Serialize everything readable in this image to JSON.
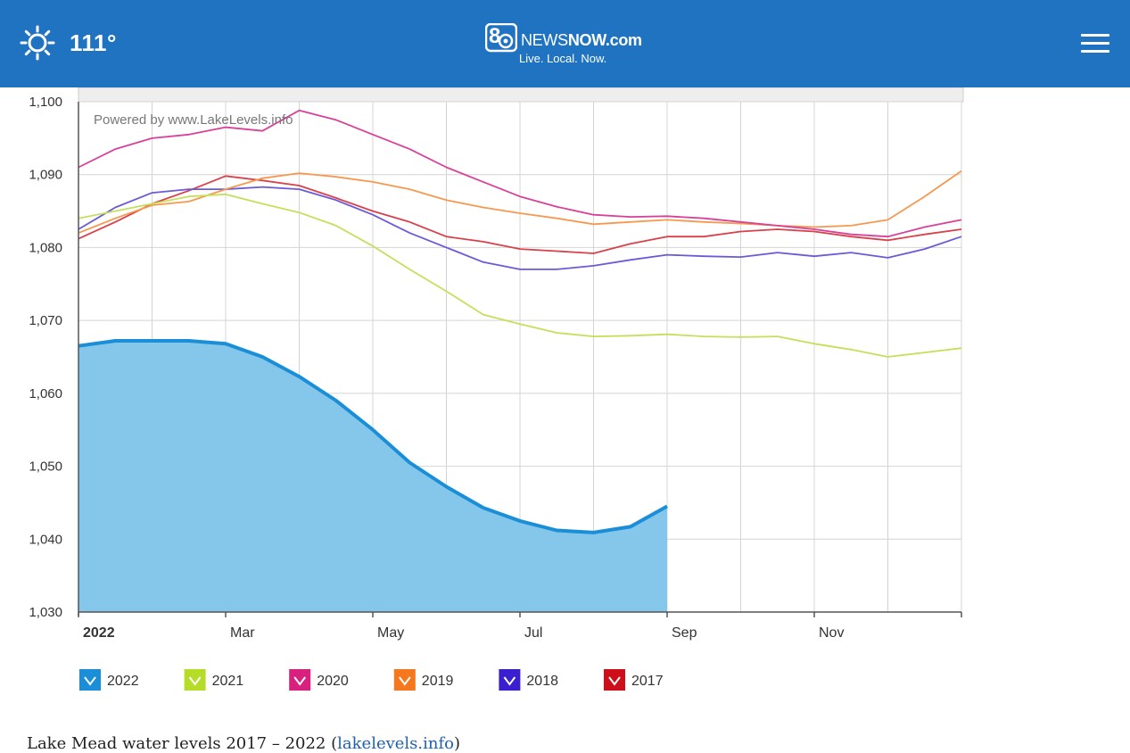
{
  "header": {
    "temperature": "111°",
    "weather_icon": "sun-icon",
    "logo_number": "8",
    "logo_news": "NEWS",
    "logo_now": "NOW",
    "logo_domain": ".com",
    "logo_tagline": "Live. Local. Now.",
    "menu_icon": "hamburger-menu-icon",
    "background_color": "#1f73c1"
  },
  "chart_data": {
    "type": "area",
    "attribution": "Powered by www.LakeLevels.info",
    "x_tick_labels": [
      "2022",
      "Mar",
      "May",
      "Jul",
      "Sep",
      "Nov"
    ],
    "ylim": [
      1030,
      1100
    ],
    "y_ticks": [
      1030,
      1040,
      1050,
      1060,
      1070,
      1080,
      1090,
      1100
    ],
    "y_tick_labels": [
      "1,030",
      "1,040",
      "1,050",
      "1,060",
      "1,070",
      "1,080",
      "1,090",
      "1,100"
    ],
    "grid": true,
    "legend_position": "bottom",
    "x_unit": "month of year",
    "series": [
      {
        "name": "2022",
        "color": "#1a8fd8",
        "fill": "#85c7ea",
        "x": [
          0,
          0.5,
          1,
          1.5,
          2,
          2.5,
          3,
          3.5,
          4,
          4.5,
          5,
          5.5,
          6,
          6.5,
          7,
          7.5,
          8
        ],
        "values": [
          1066.5,
          1067.2,
          1067.2,
          1067.2,
          1066.8,
          1065.0,
          1062.3,
          1059.0,
          1055.0,
          1050.5,
          1047.2,
          1044.3,
          1042.5,
          1041.2,
          1040.9,
          1041.7,
          1044.5
        ]
      },
      {
        "name": "2021",
        "color": "#c4e05a",
        "x": [
          0,
          0.5,
          1,
          1.5,
          2,
          2.5,
          3,
          3.5,
          4,
          4.5,
          5,
          5.5,
          6,
          6.5,
          7,
          7.5,
          8,
          8.5,
          9,
          9.5,
          10,
          10.5,
          11,
          11.5,
          12
        ],
        "values": [
          1084.0,
          1085.0,
          1086.0,
          1087.0,
          1087.3,
          1086.0,
          1084.8,
          1083.0,
          1080.2,
          1077.0,
          1074.0,
          1070.8,
          1069.5,
          1068.3,
          1067.8,
          1067.9,
          1068.1,
          1067.8,
          1067.7,
          1067.8,
          1066.8,
          1066.0,
          1065.0,
          1065.6,
          1066.2
        ]
      },
      {
        "name": "2020",
        "color": "#d8419a",
        "x": [
          0,
          0.5,
          1,
          1.5,
          2,
          2.5,
          3,
          3.5,
          4,
          4.5,
          5,
          5.5,
          6,
          6.5,
          7,
          7.5,
          8,
          8.5,
          9,
          9.5,
          10,
          10.5,
          11,
          11.5,
          12
        ],
        "values": [
          1091.0,
          1093.5,
          1095.0,
          1095.5,
          1096.5,
          1096.0,
          1098.8,
          1097.5,
          1095.5,
          1093.5,
          1091.0,
          1089.0,
          1087.0,
          1085.6,
          1084.5,
          1084.2,
          1084.3,
          1084.0,
          1083.5,
          1083.0,
          1082.5,
          1081.8,
          1081.5,
          1082.8,
          1083.8
        ]
      },
      {
        "name": "2019",
        "color": "#f6994f",
        "x": [
          0,
          0.5,
          1,
          1.5,
          2,
          2.5,
          3,
          3.5,
          4,
          4.5,
          5,
          5.5,
          6,
          6.5,
          7,
          7.5,
          8,
          8.5,
          9,
          9.5,
          10,
          10.5,
          11,
          11.5,
          12
        ],
        "values": [
          1082.0,
          1084.0,
          1085.8,
          1086.3,
          1088.0,
          1089.5,
          1090.2,
          1089.7,
          1089.0,
          1088.0,
          1086.5,
          1085.5,
          1084.7,
          1084.0,
          1083.2,
          1083.5,
          1083.8,
          1083.5,
          1083.3,
          1083.0,
          1082.8,
          1083.0,
          1083.8,
          1087.0,
          1090.5
        ]
      },
      {
        "name": "2018",
        "color": "#6b5ad8",
        "x": [
          0,
          0.5,
          1,
          1.5,
          2,
          2.5,
          3,
          3.5,
          4,
          4.5,
          5,
          5.5,
          6,
          6.5,
          7,
          7.5,
          8,
          8.5,
          9,
          9.5,
          10,
          10.5,
          11,
          11.5,
          12
        ],
        "values": [
          1082.5,
          1085.5,
          1087.5,
          1088.0,
          1088.0,
          1088.3,
          1088.0,
          1086.5,
          1084.5,
          1082.0,
          1080.0,
          1078.0,
          1077.0,
          1077.0,
          1077.5,
          1078.3,
          1079.0,
          1078.8,
          1078.7,
          1079.3,
          1078.8,
          1079.3,
          1078.6,
          1079.8,
          1081.5
        ]
      },
      {
        "name": "2017",
        "color": "#d8414a",
        "x": [
          0,
          0.5,
          1,
          1.5,
          2,
          2.5,
          3,
          3.5,
          4,
          4.5,
          5,
          5.5,
          6,
          6.5,
          7,
          7.5,
          8,
          8.5,
          9,
          9.5,
          10,
          10.5,
          11,
          11.5,
          12
        ],
        "values": [
          1081.2,
          1083.5,
          1086.0,
          1087.8,
          1089.8,
          1089.2,
          1088.5,
          1086.8,
          1085.0,
          1083.5,
          1081.5,
          1080.8,
          1079.8,
          1079.5,
          1079.2,
          1080.5,
          1081.5,
          1081.5,
          1082.2,
          1082.5,
          1082.2,
          1081.5,
          1081.0,
          1081.8,
          1082.5
        ]
      }
    ]
  },
  "legend": [
    {
      "label": "2022",
      "color": "#1a8fd8"
    },
    {
      "label": "2021",
      "color": "#b6dc2a"
    },
    {
      "label": "2020",
      "color": "#d8207e"
    },
    {
      "label": "2019",
      "color": "#f5781e"
    },
    {
      "label": "2018",
      "color": "#3a1fd0"
    },
    {
      "label": "2017",
      "color": "#cc0f18"
    }
  ],
  "caption": {
    "text": "Lake Mead water levels 2017 – 2022 (",
    "link": "lakelevels.info",
    "close": ")"
  }
}
